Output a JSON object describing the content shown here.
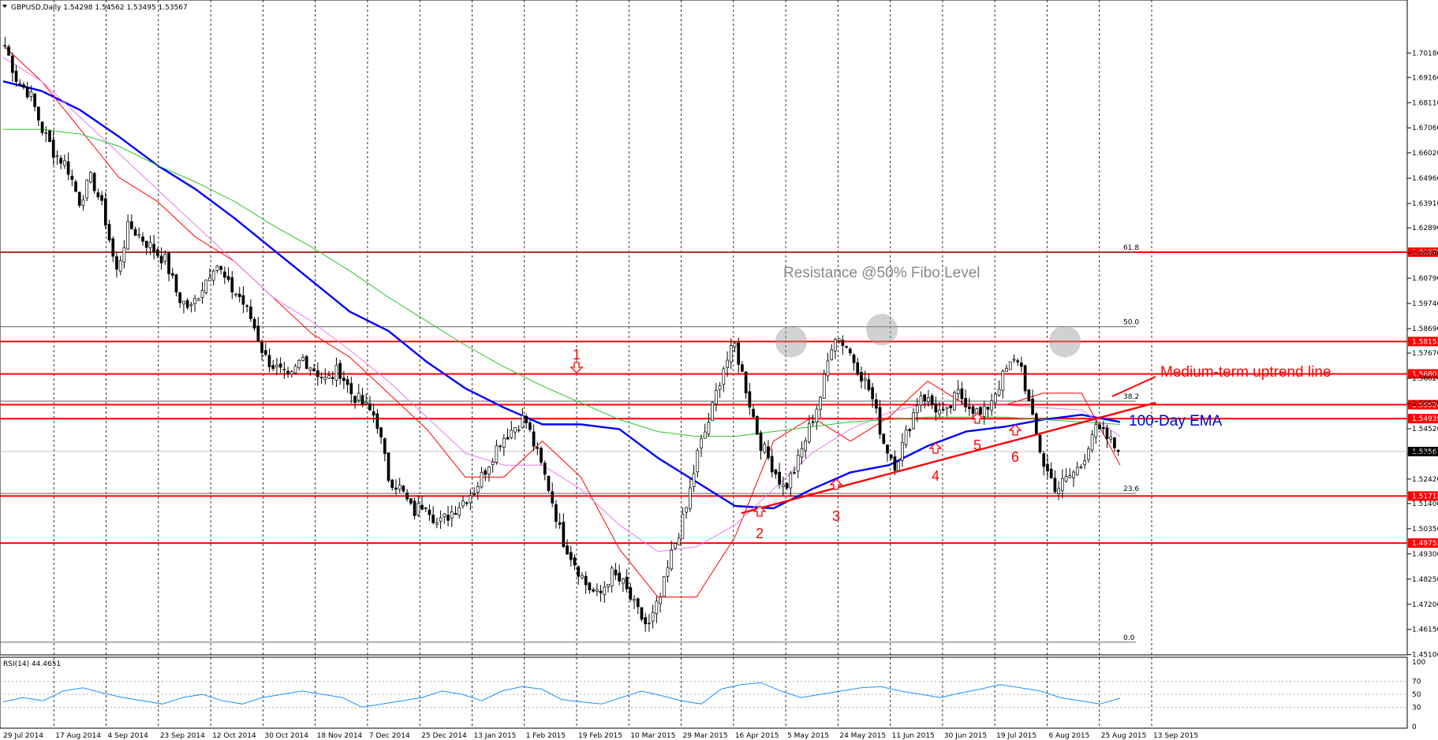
{
  "chart_data": [
    {
      "type": "candlestick",
      "title": "GBPUSD,Daily  1.54298 1.54562 1.53495 1.53567",
      "ylim": [
        1.4509,
        1.7124
      ],
      "y_ticks": [
        "1.70180",
        "1.69160",
        "1.68110",
        "1.67060",
        "1.66020",
        "1.64960",
        "1.63910",
        "1.62890",
        "1.61840",
        "1.60790",
        "1.59740",
        "1.58690",
        "1.57670",
        "1.56620",
        "1.55570",
        "1.54520",
        "1.53470",
        "1.52420",
        "1.51400",
        "1.50350",
        "1.49300",
        "1.48250",
        "1.47200",
        "1.46150",
        "1.45100"
      ],
      "x_ticks": [
        "29 Jul 2014",
        "17 Aug 2014",
        "4 Sep 2014",
        "23 Sep 2014",
        "12 Oct 2014",
        "30 Oct 2014",
        "18 Nov 2014",
        "7 Dec 2014",
        "25 Dec 2014",
        "13 Jan 2015",
        "1 Feb 2015",
        "19 Feb 2015",
        "10 Mar 2015",
        "29 Mar 2015",
        "16 Apr 2015",
        "5 May 2015",
        "24 May 2015",
        "11 Jun 2015",
        "30 Jun 2015",
        "19 Jul 2015",
        "6 Aug 2015",
        "25 Aug 2015",
        "13 Sep 2015"
      ],
      "current_price": "1.53567",
      "horizontal_levels": [
        "1.61879",
        "1.58153",
        "1.56803",
        "1.55520",
        "1.54939",
        "1.51712",
        "1.49752"
      ],
      "fibonacci": {
        "levels": [
          "61.8",
          "50.0",
          "38.2",
          "23.6",
          "0.0"
        ],
        "values": [
          1.6188,
          1.5877,
          1.5567,
          1.5182,
          1.4562
        ]
      },
      "price_anchors": {
        "values": [
          1.705,
          1.69,
          1.685,
          1.67,
          1.66,
          1.655,
          1.64,
          1.65,
          1.635,
          1.61,
          1.63,
          1.625,
          1.62,
          1.615,
          1.6,
          1.595,
          1.605,
          1.615,
          1.605,
          1.6,
          1.59,
          1.575,
          1.57,
          1.565,
          1.575,
          1.57,
          1.565,
          1.57,
          1.56,
          1.555,
          1.55,
          1.525,
          1.52,
          1.51,
          1.515,
          1.505,
          1.51,
          1.515,
          1.52,
          1.53,
          1.54,
          1.545,
          1.55,
          1.535,
          1.52,
          1.5,
          1.49,
          1.48,
          1.475,
          1.485,
          1.48,
          1.47,
          1.462,
          1.475,
          1.495,
          1.51,
          1.535,
          1.55,
          1.57,
          1.58,
          1.56,
          1.54,
          1.53,
          1.52,
          1.53,
          1.545,
          1.56,
          1.585,
          1.58,
          1.57,
          1.56,
          1.54,
          1.53,
          1.545,
          1.56,
          1.555,
          1.55,
          1.56,
          1.555,
          1.55,
          1.56,
          1.57,
          1.575,
          1.55,
          1.53,
          1.52,
          1.525,
          1.53,
          1.545,
          1.542,
          1.5357
        ]
      },
      "series": [
        {
          "name": "",
          "color": "#0000ff",
          "values": [
            1.69,
            1.686,
            1.678,
            1.667,
            1.655,
            1.645,
            1.633,
            1.62,
            1.607,
            1.594,
            1.586,
            1.573,
            1.562,
            1.554,
            1.547,
            1.547,
            1.545,
            1.533,
            1.523,
            1.513,
            1.512,
            1.52,
            1.527,
            1.53,
            1.538,
            1.544,
            1.546,
            1.549,
            1.551,
            1.548
          ]
        },
        {
          "name": "",
          "color": "#ff0000",
          "values": [
            1.705,
            1.69,
            1.67,
            1.65,
            1.64,
            1.625,
            1.615,
            1.6,
            1.585,
            1.575,
            1.56,
            1.545,
            1.525,
            1.525,
            1.54,
            1.525,
            1.495,
            1.475,
            1.475,
            1.5,
            1.54,
            1.55,
            1.54,
            1.55,
            1.565,
            1.555,
            1.555,
            1.56,
            1.56,
            1.53
          ]
        },
        {
          "name": "",
          "color": "#e87ee8",
          "values": [
            1.7,
            1.69,
            1.675,
            1.66,
            1.645,
            1.63,
            1.615,
            1.6,
            1.59,
            1.578,
            1.565,
            1.55,
            1.535,
            1.53,
            1.53,
            1.52,
            1.505,
            1.494,
            1.496,
            1.505,
            1.52,
            1.535,
            1.545,
            1.552,
            1.556,
            1.555,
            1.555,
            1.554,
            1.553,
            1.542
          ]
        },
        {
          "name": "",
          "color": "#2ec42e",
          "values": [
            1.67,
            1.67,
            1.668,
            1.663,
            1.655,
            1.648,
            1.64,
            1.63,
            1.621,
            1.611,
            1.6,
            1.59,
            1.58,
            1.571,
            1.563,
            1.556,
            1.549,
            1.544,
            1.542,
            1.542,
            1.544,
            1.546,
            1.548,
            1.549,
            1.55,
            1.55,
            1.55,
            1.549,
            1.548,
            1.547
          ]
        }
      ],
      "trendline_points": [
        1.51,
        1.556
      ],
      "rsi": {
        "label": "RSI(14) 44.4651",
        "ylim": [
          0,
          100
        ],
        "ticks": [
          "100",
          "70",
          "50",
          "30",
          "0"
        ],
        "values": [
          38,
          45,
          40,
          55,
          60,
          52,
          45,
          40,
          35,
          45,
          50,
          40,
          35,
          45,
          50,
          55,
          50,
          45,
          30,
          35,
          40,
          45,
          55,
          50,
          40,
          55,
          62,
          58,
          42,
          38,
          35,
          45,
          55,
          48,
          40,
          35,
          58,
          65,
          68,
          55,
          45,
          50,
          55,
          60,
          62,
          55,
          50,
          45,
          52,
          58,
          65,
          60,
          55,
          45,
          40,
          35,
          44
        ]
      },
      "annotations": {
        "resistance": "Resistance @50% Fibo Level",
        "uptrend": "Medium-term uptrend line",
        "ema": "100-Day EMA",
        "numbers": [
          "1",
          "2",
          "3",
          "4",
          "5",
          "6"
        ]
      },
      "colors": {
        "red": "#ff0000",
        "blue": "#0000cc",
        "gray": "#888888"
      }
    }
  ]
}
